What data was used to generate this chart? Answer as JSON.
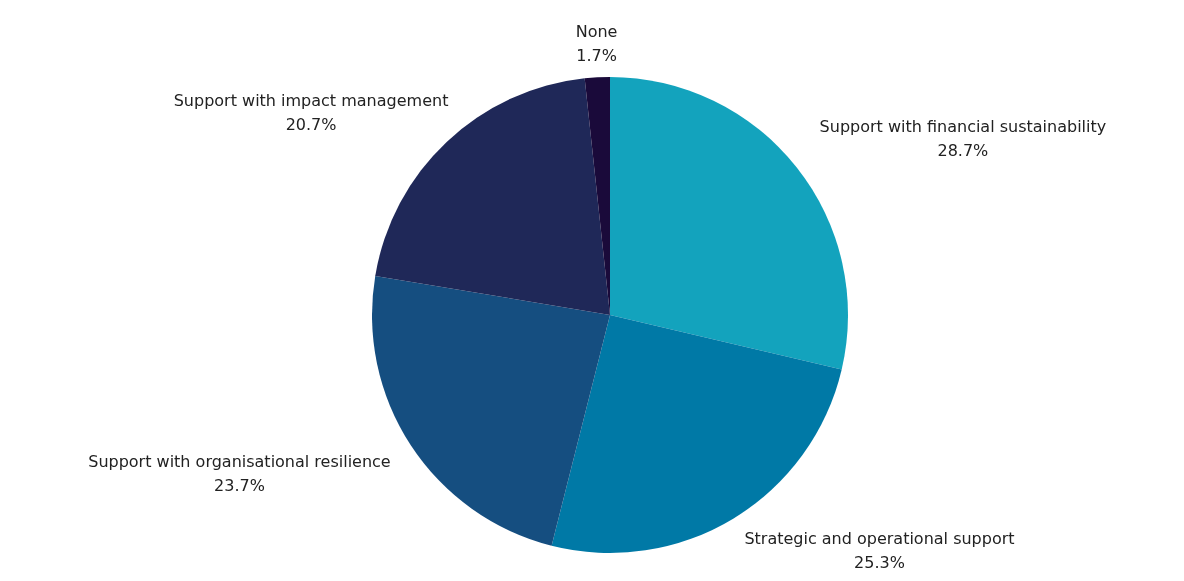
{
  "chart_data": {
    "type": "pie",
    "categories": [
      "Support with financial sustainability",
      "Strategic and operational support",
      "Support with organisational resilience",
      "Support with impact management",
      "None"
    ],
    "values": [
      28.7,
      25.3,
      23.7,
      20.7,
      1.7
    ],
    "value_labels": [
      "28.7%",
      "25.3%",
      "23.7%",
      "20.7%",
      "1.7%"
    ],
    "colors": [
      "#13a3bd",
      "#0079a6",
      "#154e80",
      "#1f2858",
      "#1a0a3a"
    ]
  }
}
